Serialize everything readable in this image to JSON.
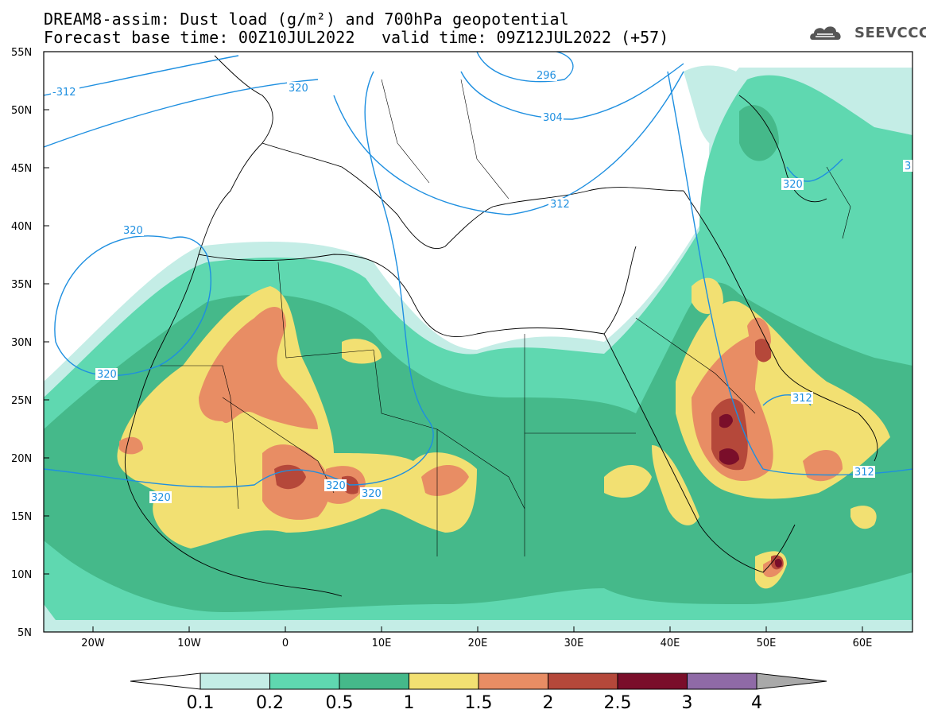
{
  "header": {
    "title_line1": "DREAM8-assim: Dust load (g/m²) and 700hPa geopotential",
    "title_line2": "Forecast base time: 00Z10JUL2022",
    "valid_time": "valid time: 09Z12JUL2022 (+57)",
    "logo_text": "SEEVCCC"
  },
  "map": {
    "lon_range": [
      -25,
      65
    ],
    "lat_range": [
      5,
      55
    ],
    "lat_labels": [
      "55N",
      "50N",
      "45N",
      "40N",
      "35N",
      "30N",
      "25N",
      "20N",
      "15N",
      "10N",
      "5N"
    ],
    "lon_labels": [
      "20W",
      "10W",
      "0",
      "10E",
      "20E",
      "30E",
      "40E",
      "50E",
      "60E"
    ],
    "contour_labels": [
      {
        "text": "-312"
      },
      {
        "text": "320"
      },
      {
        "text": "296"
      },
      {
        "text": "304"
      },
      {
        "text": "312"
      },
      {
        "text": "320"
      },
      {
        "text": "320"
      },
      {
        "text": "320"
      },
      {
        "text": "320"
      },
      {
        "text": "320"
      },
      {
        "text": "312"
      },
      {
        "text": "312"
      },
      {
        "text": "320"
      },
      {
        "text": "3"
      }
    ]
  },
  "colorbar": {
    "labels": [
      "0.1",
      "0.2",
      "0.5",
      "1",
      "1.5",
      "2",
      "2.5",
      "3",
      "4"
    ],
    "colors": [
      "#c4ede6",
      "#5fd8b0",
      "#45b98a",
      "#f2e072",
      "#e88d64",
      "#b5483a",
      "#7a0e2a",
      "#8f6aa6"
    ],
    "over_color": "#a9a9a9",
    "under_color": "#ffffff"
  },
  "colors": {
    "contour": "#1e8fe0",
    "border": "#000000"
  }
}
